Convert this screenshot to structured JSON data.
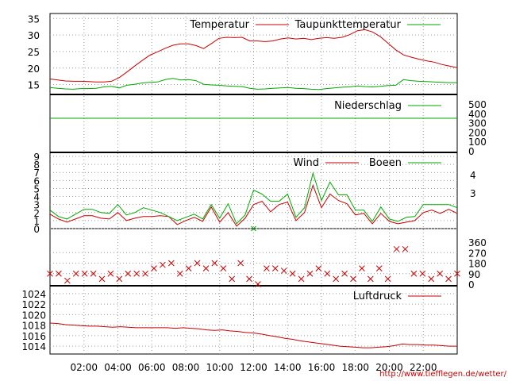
{
  "chart_data": {
    "type": "line",
    "x_tick_labels": [
      "02:00",
      "04:00",
      "06:00",
      "08:00",
      "10:00",
      "12:00",
      "14:00",
      "16:00",
      "18:00",
      "20:00",
      "22:00"
    ],
    "credit": "http://www.tiefflegen.de/wetter/",
    "colors": {
      "red": "#cc0000",
      "green": "#00aa00",
      "grid": "#999999"
    },
    "panels": {
      "temperature": {
        "ylim": [
          12.5,
          36.5
        ],
        "yticks": [
          "15",
          "20",
          "25",
          "30",
          "35"
        ],
        "series": [
          {
            "name": "Temperatur",
            "color": "#cc0000",
            "values": [
              16.7,
              16.4,
              16.1,
              16.0,
              16.0,
              15.9,
              15.8,
              15.8,
              16.0,
              17.1,
              18.8,
              20.6,
              22.3,
              23.9,
              24.9,
              26.0,
              26.9,
              27.3,
              27.3,
              26.8,
              25.9,
              27.4,
              29.0,
              29.3,
              29.2,
              29.3,
              28.2,
              28.2,
              28.0,
              28.2,
              28.8,
              29.1,
              28.8,
              29.0,
              28.6,
              29.0,
              29.2,
              29.0,
              29.3,
              30.1,
              31.3,
              31.6,
              30.9,
              29.5,
              27.5,
              25.5,
              24.0,
              23.3,
              22.7,
              22.2,
              21.8,
              21.1,
              20.6,
              20.1
            ]
          },
          {
            "name": "Taupunkttemperatur",
            "color": "#00aa00",
            "values": [
              14.1,
              13.9,
              13.7,
              13.6,
              13.8,
              13.8,
              13.9,
              14.3,
              14.5,
              14.0,
              14.8,
              15.1,
              15.5,
              15.7,
              15.8,
              16.5,
              16.9,
              16.4,
              16.5,
              16.2,
              15.1,
              14.9,
              14.8,
              14.6,
              14.5,
              14.4,
              13.9,
              13.6,
              13.7,
              13.9,
              14.0,
              14.1,
              13.9,
              13.8,
              13.6,
              13.5,
              13.8,
              14.0,
              14.2,
              14.3,
              14.6,
              14.4,
              14.3,
              14.5,
              14.7,
              14.8,
              16.5,
              16.2,
              16.0,
              15.9,
              15.8,
              15.7,
              15.6,
              15.6
            ]
          }
        ]
      },
      "precipitation": {
        "ylim": [
          0,
          500
        ],
        "yticks_right": [
          "500",
          "400",
          "300",
          "200",
          "100",
          "0"
        ],
        "series": [
          {
            "name": "Niederschlag",
            "color": "#00aa00",
            "values": [
              0
            ]
          }
        ]
      },
      "wind": {
        "ylim": [
          0,
          9
        ],
        "yticks_left": [
          "0",
          "1",
          "2",
          "3",
          "4",
          "5",
          "6",
          "7",
          "8",
          "9"
        ],
        "yticks_right": [
          "4",
          "3"
        ],
        "series": [
          {
            "name": "Wind",
            "color": "#cc0000",
            "values": [
              1.8,
              1.2,
              0.8,
              1.2,
              1.6,
              1.6,
              1.3,
              1.2,
              2.0,
              1.0,
              1.3,
              1.5,
              1.5,
              1.6,
              1.5,
              0.5,
              1.0,
              1.4,
              0.9,
              2.7,
              0.8,
              2.0,
              0.3,
              1.3,
              3.0,
              3.4,
              2.1,
              3.0,
              3.3,
              1.0,
              2.0,
              5.4,
              2.6,
              4.3,
              3.5,
              3.1,
              1.7,
              1.9,
              0.6,
              1.9,
              0.9,
              0.6,
              0.8,
              1.0,
              2.0,
              2.3,
              1.9,
              2.4,
              1.9
            ]
          },
          {
            "name": "Boeen",
            "color": "#00aa00",
            "values": [
              2.3,
              1.5,
              1.2,
              1.8,
              2.4,
              2.4,
              2.0,
              1.9,
              3.0,
              1.7,
              2.0,
              2.6,
              2.3,
              2.0,
              1.5,
              1.0,
              1.4,
              1.8,
              1.2,
              3.0,
              1.3,
              3.1,
              0.6,
              1.7,
              4.8,
              4.3,
              3.4,
              3.4,
              4.3,
              1.4,
              2.6,
              6.9,
              3.5,
              5.8,
              4.2,
              4.2,
              2.3,
              2.3,
              0.9,
              2.7,
              1.2,
              0.9,
              1.4,
              1.5,
              3.0,
              3.0,
              3.0,
              3.0,
              2.6
            ]
          }
        ]
      },
      "wind_direction": {
        "ylim": [
          0,
          360
        ],
        "yticks_right": [
          "360",
          "270",
          "180",
          "90",
          "0"
        ],
        "marker": "x",
        "color": "#cc0000",
        "values": [
          90,
          90,
          30,
          90,
          90,
          90,
          45,
          90,
          45,
          90,
          90,
          90,
          135,
          165,
          180,
          90,
          135,
          180,
          135,
          180,
          135,
          45,
          180,
          45,
          0,
          135,
          135,
          115,
          90,
          45,
          90,
          135,
          90,
          45,
          90,
          45,
          135,
          45,
          135,
          45,
          300,
          300,
          90,
          90,
          45,
          90,
          45,
          90
        ]
      },
      "pressure": {
        "ylim": [
          1012.5,
          1025.5
        ],
        "yticks": [
          "1014",
          "1016",
          "1018",
          "1020",
          "1022",
          "1024"
        ],
        "series": [
          {
            "name": "Luftdruck",
            "color": "#cc0000",
            "values": [
              1018.4,
              1018.3,
              1018.1,
              1018.0,
              1017.9,
              1017.8,
              1017.8,
              1017.7,
              1017.6,
              1017.7,
              1017.6,
              1017.5,
              1017.5,
              1017.5,
              1017.5,
              1017.5,
              1017.4,
              1017.5,
              1017.4,
              1017.3,
              1017.1,
              1017.0,
              1017.1,
              1016.9,
              1016.8,
              1016.6,
              1016.5,
              1016.3,
              1016.0,
              1015.8,
              1015.5,
              1015.3,
              1015.0,
              1014.8,
              1014.6,
              1014.4,
              1014.2,
              1014.0,
              1013.9,
              1013.8,
              1013.7,
              1013.7,
              1013.8,
              1013.9,
              1014.1,
              1014.4,
              1014.3,
              1014.3,
              1014.2,
              1014.2,
              1014.1,
              1014.0,
              1014.0
            ]
          }
        ]
      }
    }
  }
}
